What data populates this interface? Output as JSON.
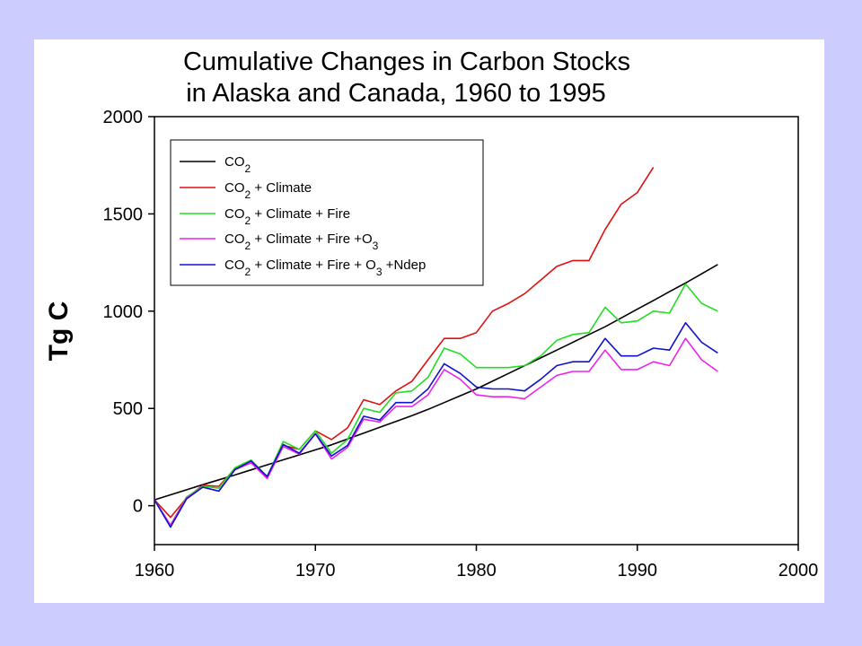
{
  "chart_data": {
    "type": "line",
    "title_lines": [
      "Cumulative Changes in Carbon Stocks",
      "in Alaska and Canada, 1960 to 1995"
    ],
    "ylabel": "Tg C",
    "xlabel": "",
    "xlim": [
      1960,
      2000
    ],
    "ylim": [
      -200,
      2000
    ],
    "x_ticks": [
      "1960",
      "1970",
      "1980",
      "1990",
      "2000"
    ],
    "y_ticks": [
      "0",
      "500",
      "1000",
      "1500",
      "2000"
    ],
    "grid": false,
    "legend_position": "top-left",
    "x": [
      1960,
      1961,
      1962,
      1963,
      1964,
      1965,
      1966,
      1967,
      1968,
      1969,
      1970,
      1971,
      1972,
      1973,
      1974,
      1975,
      1976,
      1977,
      1978,
      1979,
      1980,
      1981,
      1982,
      1983,
      1984,
      1985,
      1986,
      1987,
      1988,
      1989,
      1990,
      1991,
      1992,
      1993,
      1994,
      1995
    ],
    "series": [
      {
        "name": "CO2",
        "legend": {
          "base": "CO",
          "sub": "2",
          "rest": ""
        },
        "color": "#000000",
        "values": [
          30,
          56,
          82,
          108,
          133,
          158,
          184,
          210,
          236,
          261,
          287,
          313,
          343,
          373,
          403,
          433,
          463,
          495,
          530,
          565,
          600,
          640,
          680,
          720,
          760,
          800,
          840,
          880,
          920,
          965,
          1010,
          1055,
          1100,
          1145,
          1192,
          1240
        ]
      },
      {
        "name": "CO2 + Climate",
        "legend": {
          "base": "CO",
          "sub": "2",
          "rest": " + Climate"
        },
        "color": "#dd1111",
        "values": [
          30,
          -60,
          40,
          105,
          100,
          190,
          230,
          140,
          310,
          290,
          385,
          340,
          400,
          545,
          520,
          590,
          640,
          750,
          860,
          860,
          890,
          1000,
          1040,
          1090,
          1160,
          1230,
          1260,
          1260,
          1420,
          1550,
          1610,
          1740,
          null,
          null,
          null,
          null
        ]
      },
      {
        "name": "CO2 + Climate + Fire",
        "legend": {
          "base": "CO",
          "sub": "2",
          "rest": " + Climate + Fire"
        },
        "color": "#22dd22",
        "values": [
          30,
          -100,
          45,
          100,
          90,
          195,
          235,
          150,
          330,
          290,
          385,
          270,
          340,
          500,
          480,
          580,
          590,
          660,
          810,
          780,
          710,
          710,
          710,
          720,
          770,
          850,
          880,
          890,
          1020,
          940,
          950,
          1000,
          990,
          1140,
          1040,
          1000
        ]
      },
      {
        "name": "CO2 + Climate + Fire +O3",
        "legend": {
          "base": "CO",
          "sub": "2",
          "rest": " + Climate + Fire +O",
          "sub2": "3",
          "rest2": ""
        },
        "color": "#ee22ee",
        "values": [
          30,
          -100,
          40,
          95,
          75,
          185,
          220,
          140,
          305,
          265,
          370,
          240,
          300,
          445,
          430,
          510,
          510,
          570,
          700,
          650,
          570,
          560,
          560,
          550,
          610,
          670,
          690,
          690,
          800,
          700,
          700,
          740,
          720,
          860,
          750,
          690
        ]
      },
      {
        "name": "CO2 + Climate + Fire + O3 +Ndep",
        "legend": {
          "base": "CO",
          "sub": "2",
          "rest": " + Climate + Fire + O",
          "sub2": "3",
          "rest2": " +Ndep"
        },
        "color": "#1111cc",
        "values": [
          30,
          -110,
          35,
          95,
          75,
          185,
          230,
          150,
          315,
          270,
          370,
          255,
          310,
          460,
          440,
          530,
          530,
          600,
          730,
          680,
          610,
          600,
          600,
          590,
          650,
          720,
          740,
          740,
          860,
          770,
          770,
          810,
          800,
          940,
          840,
          785
        ]
      }
    ]
  }
}
